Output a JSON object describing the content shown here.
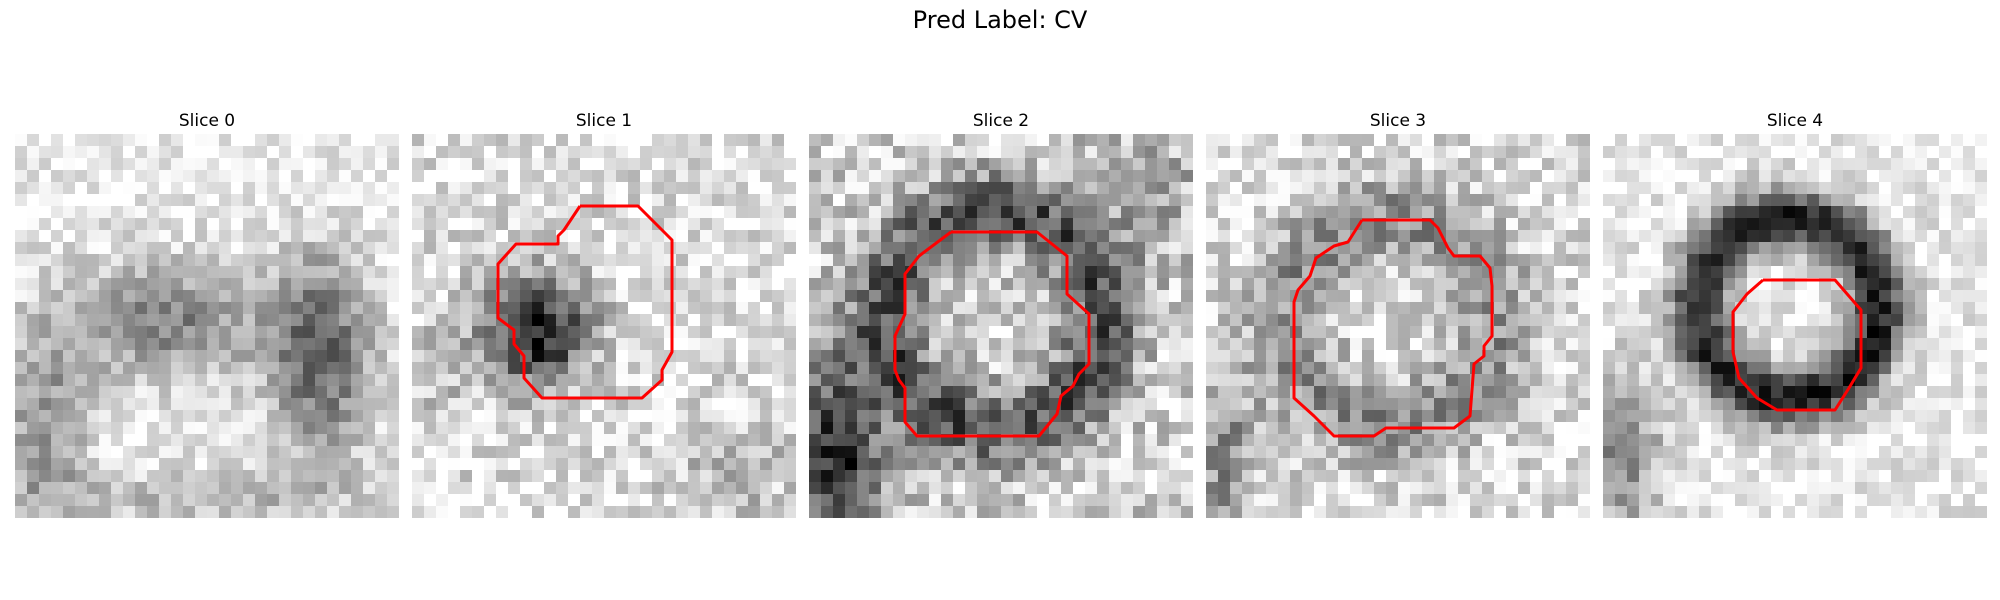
{
  "figure": {
    "suptitle": "Pred Label: CV"
  },
  "panels": [
    {
      "title": "Slice 0",
      "has_contour": false
    },
    {
      "title": "Slice 1",
      "has_contour": true
    },
    {
      "title": "Slice 2",
      "has_contour": true
    },
    {
      "title": "Slice 3",
      "has_contour": true
    },
    {
      "title": "Slice 4",
      "has_contour": true
    }
  ],
  "colors": {
    "contour": "#ff0000"
  }
}
